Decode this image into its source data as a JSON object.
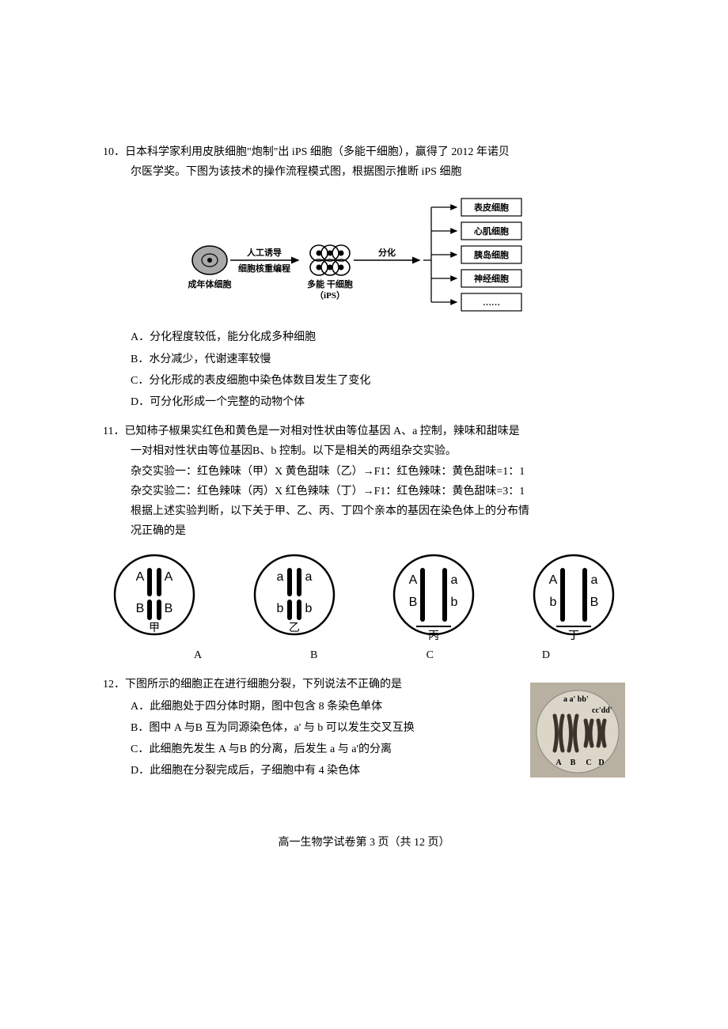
{
  "q10": {
    "num": "10．",
    "stem1": "日本科学家利用皮肤细胞\"炮制\"出 iPS 细胞（多能干细胞），赢得了 2012 年诺贝",
    "stem2": "尔医学奖。下图为该技术的操作流程模式图，根据图示推断 iPS 细胞",
    "diagram": {
      "adult_cell": "成年体细胞",
      "induce1": "人工诱导",
      "induce2": "细胞核重编程",
      "ips1": "多能 干细胞",
      "ips2": "（iPS）",
      "diff": "分化",
      "targets": [
        "表皮细胞",
        "心肌细胞",
        "胰岛细胞",
        "神经细胞",
        "……"
      ],
      "colors": {
        "cell_fill": "#a9a9a9",
        "cell_line": "#000000",
        "box_fill": "#ffffff",
        "box_line": "#000000",
        "arrow": "#000000",
        "text": "#000000"
      },
      "fontsize": 11,
      "bold_fontsize": 11
    },
    "opts": {
      "A": "A．分化程度较低，能分化成多种细胞",
      "B": "B．水分减少，代谢速率较慢",
      "C": "C．分化形成的表皮细胞中染色体数目发生了变化",
      "D": "D．可分化形成一个完整的动物个体"
    }
  },
  "q11": {
    "num": "11．",
    "stem1": "已知柿子椒果实红色和黄色是一对相对性状由等位基因 A、a 控制，辣味和甜味是",
    "stem2": "一对相对性状由等位基因B、b 控制。以下是相关的两组杂交实验。",
    "line3": "杂交实验一：红色辣味（甲）X 黄色甜味（乙）→F1：红色辣味：黄色甜味=1：1",
    "line4": "杂交实验二：红色辣味（丙）X 红色辣味（丁）→F1：红色辣味：黄色甜味=3：1",
    "line5": "根据上述实验判断，以下关于甲、乙、丙、丁四个亲本的基因在染色体上的分布情",
    "line6": "况正确的是",
    "chromo": {
      "items": [
        {
          "label": "甲",
          "alleles": [
            [
              "A",
              "A"
            ],
            [
              "B",
              "B"
            ]
          ],
          "sep": false
        },
        {
          "label": "乙",
          "alleles": [
            [
              "a",
              "a"
            ],
            [
              "b",
              "b"
            ]
          ],
          "sep": false
        },
        {
          "label": "丙",
          "alleles": [
            [
              "A",
              "a"
            ],
            [
              "B",
              "b"
            ]
          ],
          "sep": true
        },
        {
          "label": "丁",
          "alleles": [
            [
              "A",
              "a"
            ],
            [
              "b",
              "B"
            ]
          ],
          "sep": true
        }
      ],
      "colors": {
        "circle_line": "#000000",
        "chr_fill": "#000000",
        "text": "#000000",
        "font_family": "Arial, sans-serif"
      },
      "fontsize": 16,
      "label_fontsize": 14
    },
    "letters": {
      "A": "A",
      "B": "B",
      "C": "C",
      "D": "D"
    }
  },
  "q12": {
    "num": "12．",
    "stem": "下图所示的细胞正在进行细胞分裂，下列说法不正确的是",
    "opts": {
      "A": "A．此细胞处于四分体时期，图中包含 8 条染色单体",
      "B": "B．图中 A 与B 互为同源染色体，a' 与 b 可以发生交叉互换",
      "C": "C．此细胞先发生 A 与B 的分离，后发生 a 与 a'的分离",
      "D": "D．此细胞在分裂完成后，子细胞中有 4 染色体"
    },
    "image": {
      "bg": "#b8b0a0",
      "plate": "#dcd6c9",
      "chr_dark": "#3a342c",
      "letters": [
        "A",
        "B",
        "C",
        "D"
      ],
      "top_letters": "a a' bb'",
      "right_letters": "cc'dd'",
      "fontsize": 10
    }
  },
  "footer": "高一生物学试卷第 3 页（共 12 页）"
}
